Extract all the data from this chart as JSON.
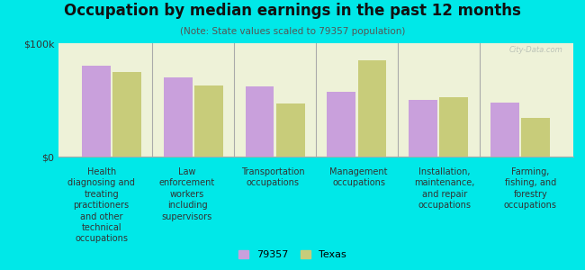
{
  "title": "Occupation by median earnings in the past 12 months",
  "subtitle": "(Note: State values scaled to 79357 population)",
  "background_color": "#00e8e8",
  "plot_bg_color": "#eef2d8",
  "categories": [
    "Health\ndiagnosing and\ntreating\npractitioners\nand other\ntechnical\noccupations",
    "Law\nenforcement\nworkers\nincluding\nsupervisors",
    "Transportation\noccupations",
    "Management\noccupations",
    "Installation,\nmaintenance,\nand repair\noccupations",
    "Farming,\nfishing, and\nforestry\noccupations"
  ],
  "values_79357": [
    80000,
    70000,
    62000,
    57000,
    50000,
    48000
  ],
  "values_texas": [
    75000,
    63000,
    47000,
    85000,
    52000,
    34000
  ],
  "color_79357": "#c9a0dc",
  "color_texas": "#c8cc7a",
  "ylim": [
    0,
    100000
  ],
  "ytick_labels": [
    "$0",
    "$100k"
  ],
  "legend_label_79357": "79357",
  "legend_label_texas": "Texas",
  "watermark": "City-Data.com",
  "title_fontsize": 12,
  "subtitle_fontsize": 7.5,
  "tick_label_fontsize": 7,
  "legend_fontsize": 8
}
